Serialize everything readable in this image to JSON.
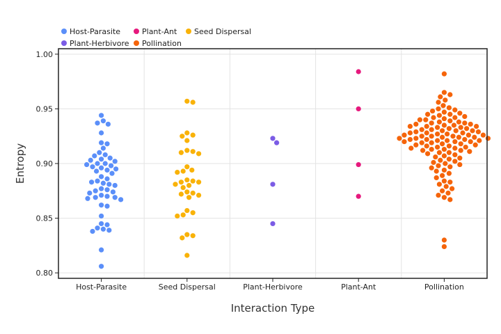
{
  "chart_data": {
    "type": "scatter",
    "title": "",
    "xlabel": "Interaction Type",
    "ylabel": "Entropy",
    "ylim": [
      0.795,
      1.005
    ],
    "yticks": [
      "0.80",
      "0.85",
      "0.90",
      "0.95",
      "1.00"
    ],
    "grid": true,
    "legend_position": "top-left",
    "categories": [
      "Host-Parasite",
      "Seed Dispersal",
      "Plant-Herbivore",
      "Plant-Ant",
      "Pollination"
    ],
    "legend_order": [
      "Host-Parasite",
      "Plant-Ant",
      "Seed Dispersal",
      "Plant-Herbivore",
      "Pollination"
    ],
    "series": [
      {
        "name": "Host-Parasite",
        "category": "Host-Parasite",
        "color": "#5b8ff9",
        "values": [
          0.944,
          0.939,
          0.937,
          0.936,
          0.928,
          0.919,
          0.918,
          0.914,
          0.91,
          0.908,
          0.907,
          0.905,
          0.904,
          0.903,
          0.902,
          0.9,
          0.9,
          0.899,
          0.898,
          0.897,
          0.896,
          0.895,
          0.894,
          0.893,
          0.891,
          0.888,
          0.886,
          0.884,
          0.883,
          0.882,
          0.881,
          0.88,
          0.877,
          0.876,
          0.875,
          0.874,
          0.873,
          0.871,
          0.87,
          0.869,
          0.869,
          0.868,
          0.867,
          0.862,
          0.861,
          0.852,
          0.845,
          0.844,
          0.841,
          0.84,
          0.839,
          0.838,
          0.821,
          0.806
        ]
      },
      {
        "name": "Seed Dispersal",
        "category": "Seed Dispersal",
        "color": "#f9b208",
        "values": [
          0.957,
          0.956,
          0.928,
          0.926,
          0.925,
          0.921,
          0.912,
          0.911,
          0.91,
          0.909,
          0.897,
          0.894,
          0.893,
          0.892,
          0.885,
          0.884,
          0.883,
          0.883,
          0.881,
          0.88,
          0.878,
          0.874,
          0.873,
          0.872,
          0.871,
          0.869,
          0.857,
          0.855,
          0.853,
          0.852,
          0.835,
          0.834,
          0.832,
          0.816
        ]
      },
      {
        "name": "Plant-Herbivore",
        "category": "Plant-Herbivore",
        "color": "#7b5ce5",
        "values": [
          0.923,
          0.919,
          0.881,
          0.845
        ]
      },
      {
        "name": "Plant-Ant",
        "category": "Plant-Ant",
        "color": "#e6197d",
        "values": [
          0.984,
          0.95,
          0.899,
          0.87
        ]
      },
      {
        "name": "Pollination",
        "category": "Pollination",
        "color": "#f5640a",
        "values": [
          0.982,
          0.965,
          0.963,
          0.961,
          0.958,
          0.956,
          0.953,
          0.951,
          0.95,
          0.949,
          0.948,
          0.947,
          0.946,
          0.945,
          0.945,
          0.944,
          0.943,
          0.942,
          0.942,
          0.941,
          0.94,
          0.94,
          0.939,
          0.938,
          0.938,
          0.937,
          0.937,
          0.936,
          0.936,
          0.935,
          0.935,
          0.934,
          0.934,
          0.934,
          0.933,
          0.933,
          0.932,
          0.932,
          0.931,
          0.931,
          0.93,
          0.93,
          0.93,
          0.929,
          0.929,
          0.928,
          0.928,
          0.928,
          0.927,
          0.927,
          0.926,
          0.926,
          0.926,
          0.925,
          0.925,
          0.925,
          0.924,
          0.924,
          0.924,
          0.923,
          0.923,
          0.923,
          0.922,
          0.922,
          0.922,
          0.921,
          0.921,
          0.921,
          0.92,
          0.92,
          0.92,
          0.919,
          0.919,
          0.918,
          0.918,
          0.917,
          0.917,
          0.916,
          0.916,
          0.915,
          0.915,
          0.914,
          0.914,
          0.913,
          0.913,
          0.912,
          0.912,
          0.911,
          0.91,
          0.91,
          0.909,
          0.908,
          0.907,
          0.906,
          0.905,
          0.904,
          0.903,
          0.902,
          0.901,
          0.9,
          0.899,
          0.898,
          0.897,
          0.896,
          0.894,
          0.893,
          0.891,
          0.889,
          0.887,
          0.884,
          0.883,
          0.881,
          0.879,
          0.877,
          0.875,
          0.873,
          0.871,
          0.869,
          0.867,
          0.83,
          0.824
        ]
      }
    ]
  }
}
